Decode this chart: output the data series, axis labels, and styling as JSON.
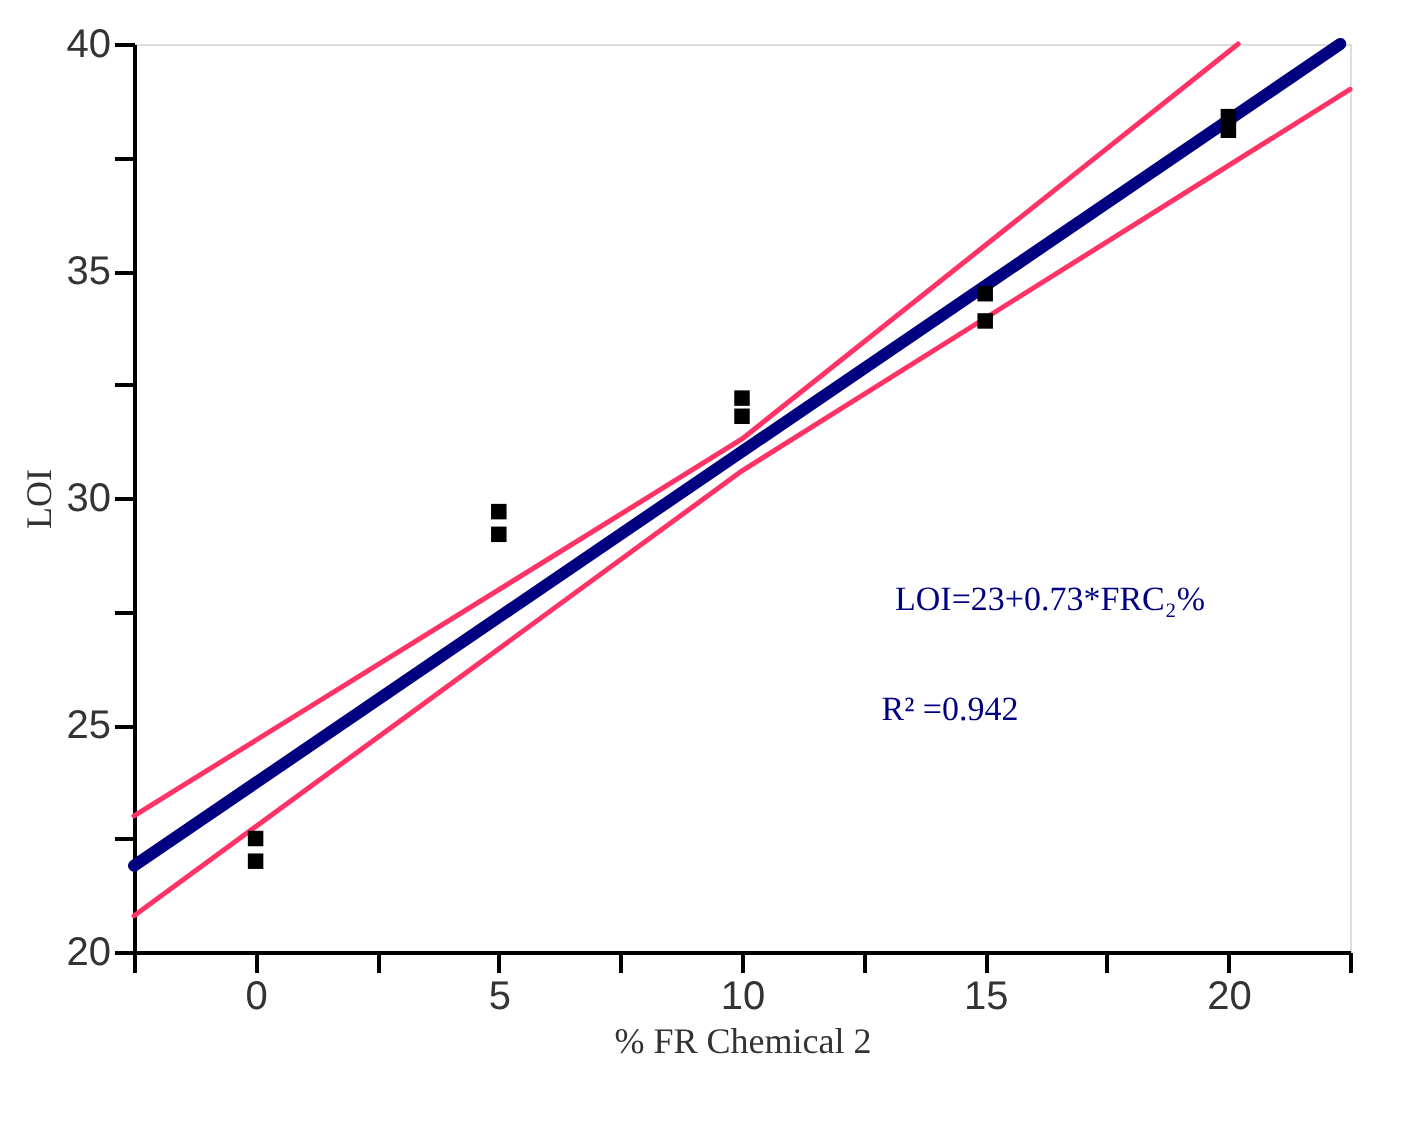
{
  "chart_data": {
    "type": "scatter",
    "xlabel": "% FR Chemical 2",
    "ylabel": "LOI",
    "xlim": [
      -2.5,
      22.5
    ],
    "ylim": [
      20,
      40
    ],
    "xticks": [
      {
        "value": -2.5,
        "label": null
      },
      0,
      {
        "value": 2.5,
        "label": null
      },
      5,
      {
        "value": 7.5,
        "label": null
      },
      10,
      {
        "value": 12.5,
        "label": null
      },
      15,
      {
        "value": 17.5,
        "label": null
      },
      20,
      {
        "value": 22.5,
        "label": null
      }
    ],
    "yticks": [
      20,
      {
        "value": 22.5,
        "label": null
      },
      25,
      {
        "value": 27.5,
        "label": null
      },
      30,
      {
        "value": 32.5,
        "label": null
      },
      35,
      {
        "value": 37.5,
        "label": null
      },
      40
    ],
    "grid": false,
    "series": [
      {
        "type": "line",
        "color": "#ff3366",
        "x": [
          -2.5,
          10,
          20.2
        ],
        "values": [
          23.0,
          31.3,
          40.0
        ]
      },
      {
        "type": "line",
        "color": "#ff3366",
        "x": [
          -2.5,
          10,
          22.5
        ],
        "values": [
          20.8,
          30.6,
          39.0
        ]
      },
      {
        "type": "line",
        "color": "#000080",
        "x": [
          -2.5,
          22.3
        ],
        "values": [
          21.9,
          40.0
        ]
      },
      {
        "marker": "square",
        "color": "#000000",
        "x": [
          0,
          0,
          5,
          5,
          10,
          10,
          15,
          15,
          20,
          20
        ],
        "values": [
          22.0,
          22.5,
          29.2,
          29.7,
          31.8,
          32.2,
          33.9,
          34.5,
          38.1,
          38.4
        ]
      }
    ],
    "annotations": [
      "LOI=23+0.73*FRC₂%",
      "R² =0.942"
    ]
  }
}
